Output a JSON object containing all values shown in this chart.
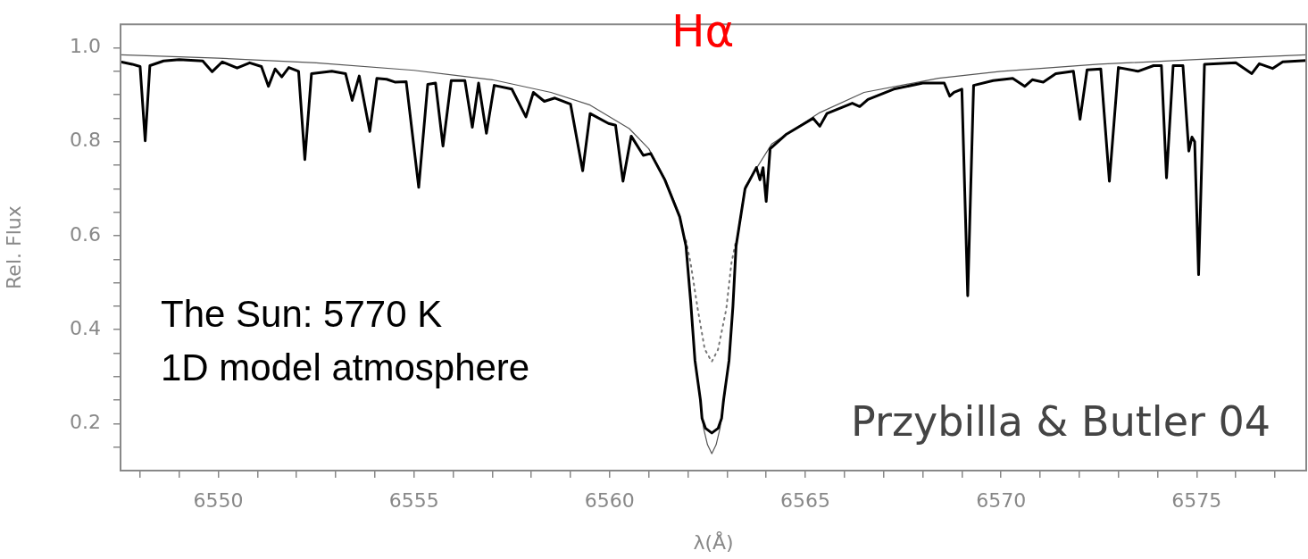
{
  "chart_data": {
    "type": "line",
    "xlabel": "λ(Å)",
    "ylabel": "Rel. Flux",
    "xlim": [
      6547.5,
      6577.8
    ],
    "ylim": [
      0.1,
      1.05
    ],
    "xticks": [
      {
        "value": 6548,
        "label": null
      },
      {
        "value": 6549,
        "label": null
      },
      6550,
      {
        "value": 6551,
        "label": null
      },
      {
        "value": 6552,
        "label": null
      },
      {
        "value": 6553,
        "label": null
      },
      {
        "value": 6554,
        "label": null
      },
      6555,
      {
        "value": 6556,
        "label": null
      },
      {
        "value": 6557,
        "label": null
      },
      {
        "value": 6558,
        "label": null
      },
      {
        "value": 6559,
        "label": null
      },
      6560,
      {
        "value": 6561,
        "label": null
      },
      {
        "value": 6562,
        "label": null
      },
      {
        "value": 6563,
        "label": null
      },
      {
        "value": 6564,
        "label": null
      },
      6565,
      {
        "value": 6566,
        "label": null
      },
      {
        "value": 6567,
        "label": null
      },
      {
        "value": 6568,
        "label": null
      },
      {
        "value": 6569,
        "label": null
      },
      6570,
      {
        "value": 6571,
        "label": null
      },
      {
        "value": 6572,
        "label": null
      },
      {
        "value": 6573,
        "label": null
      },
      {
        "value": 6574,
        "label": null
      },
      6575,
      {
        "value": 6576,
        "label": null
      },
      {
        "value": 6577,
        "label": null
      }
    ],
    "yticks": [
      {
        "value": 0.15,
        "label": null
      },
      0.2,
      {
        "value": 0.25,
        "label": null
      },
      {
        "value": 0.3,
        "label": null
      },
      {
        "value": 0.35,
        "label": null
      },
      0.4,
      {
        "value": 0.45,
        "label": null
      },
      {
        "value": 0.5,
        "label": null
      },
      {
        "value": 0.55,
        "label": null
      },
      0.6,
      {
        "value": 0.65,
        "label": null
      },
      {
        "value": 0.7,
        "label": null
      },
      {
        "value": 0.75,
        "label": null
      },
      0.8,
      {
        "value": 0.85,
        "label": null
      },
      {
        "value": 0.9,
        "label": null
      },
      {
        "value": 0.95,
        "label": null
      },
      {
        "value": 1.0,
        "label": "1.0"
      }
    ],
    "grid": false,
    "legend": false,
    "marker": "none",
    "series": [
      {
        "color": "#000000",
        "line_style": "solid",
        "x": [
          6547.5,
          6547.8,
          6548.0,
          6548.13,
          6548.25,
          6548.6,
          6549.0,
          6549.6,
          6549.84,
          6550.1,
          6550.48,
          6550.8,
          6551.1,
          6551.28,
          6551.45,
          6551.62,
          6551.8,
          6552.05,
          6552.21,
          6552.38,
          6552.9,
          6553.25,
          6553.42,
          6553.6,
          6553.87,
          6554.05,
          6554.3,
          6554.51,
          6554.8,
          6555.12,
          6555.35,
          6555.55,
          6555.74,
          6555.95,
          6556.3,
          6556.49,
          6556.65,
          6556.85,
          6557.05,
          6557.5,
          6557.86,
          6558.05,
          6558.33,
          6558.6,
          6559.0,
          6559.31,
          6559.5,
          6559.97,
          6560.15,
          6560.34,
          6560.55,
          6560.86,
          6561.05,
          6561.41,
          6561.79,
          6561.95,
          6562.07,
          6562.18,
          6562.32,
          6562.36,
          6562.45,
          6562.61,
          6562.77,
          6562.86,
          6562.91,
          6563.05,
          6563.15,
          6563.23,
          6563.46,
          6563.75,
          6563.84,
          6563.92,
          6564.0,
          6564.1,
          6564.5,
          6565.2,
          6565.37,
          6565.55,
          6566.2,
          6566.39,
          6566.6,
          6567.26,
          6568.0,
          6568.55,
          6568.69,
          6568.8,
          6569.0,
          6569.15,
          6569.3,
          6569.8,
          6570.3,
          6570.61,
          6570.8,
          6571.08,
          6571.4,
          6571.85,
          6572.02,
          6572.2,
          6572.55,
          6572.77,
          6573.0,
          6573.5,
          6573.9,
          6574.1,
          6574.23,
          6574.4,
          6574.65,
          6574.8,
          6574.88,
          6574.95,
          6575.05,
          6575.2,
          6576.0,
          6576.41,
          6576.6,
          6576.94,
          6577.2,
          6577.8
        ],
        "values": [
          0.97,
          0.965,
          0.96,
          0.802,
          0.962,
          0.972,
          0.975,
          0.972,
          0.949,
          0.97,
          0.957,
          0.968,
          0.96,
          0.918,
          0.955,
          0.938,
          0.958,
          0.95,
          0.762,
          0.945,
          0.95,
          0.945,
          0.888,
          0.94,
          0.822,
          0.935,
          0.933,
          0.927,
          0.928,
          0.703,
          0.922,
          0.925,
          0.791,
          0.93,
          0.93,
          0.831,
          0.925,
          0.818,
          0.92,
          0.912,
          0.853,
          0.905,
          0.886,
          0.893,
          0.88,
          0.738,
          0.86,
          0.839,
          0.835,
          0.716,
          0.812,
          0.771,
          0.775,
          0.719,
          0.64,
          0.578,
          0.46,
          0.334,
          0.25,
          0.211,
          0.19,
          0.18,
          0.19,
          0.211,
          0.25,
          0.334,
          0.45,
          0.578,
          0.7,
          0.745,
          0.719,
          0.745,
          0.673,
          0.785,
          0.815,
          0.85,
          0.833,
          0.86,
          0.882,
          0.875,
          0.89,
          0.912,
          0.925,
          0.925,
          0.897,
          0.905,
          0.912,
          0.472,
          0.92,
          0.93,
          0.935,
          0.918,
          0.932,
          0.927,
          0.945,
          0.95,
          0.848,
          0.953,
          0.955,
          0.716,
          0.958,
          0.95,
          0.962,
          0.962,
          0.723,
          0.962,
          0.962,
          0.78,
          0.81,
          0.8,
          0.517,
          0.965,
          0.968,
          0.945,
          0.966,
          0.956,
          0.97,
          0.973
        ]
      },
      {
        "color": "#555555",
        "line_style": "solid",
        "x": [
          6547.5,
          6550,
          6552.5,
          6555,
          6557,
          6558.5,
          6559.5,
          6560.5,
          6561.0,
          6561.41,
          6561.79,
          6561.95,
          6562.07,
          6562.18,
          6562.32,
          6562.4,
          6562.5,
          6562.61,
          6562.72,
          6562.82,
          6562.91,
          6563.05,
          6563.15,
          6563.23,
          6563.46,
          6564.14,
          6565.37,
          6566.5,
          6568.4,
          6570,
          6572.5,
          6575,
          6577.8
        ],
        "values": [
          0.985,
          0.978,
          0.968,
          0.952,
          0.932,
          0.905,
          0.878,
          0.828,
          0.785,
          0.722,
          0.643,
          0.58,
          0.46,
          0.334,
          0.245,
          0.19,
          0.155,
          0.136,
          0.155,
          0.19,
          0.245,
          0.334,
          0.45,
          0.58,
          0.705,
          0.795,
          0.862,
          0.905,
          0.935,
          0.95,
          0.965,
          0.975,
          0.985
        ]
      },
      {
        "color": "#777777",
        "line_style": "dotted",
        "x": [
          6561.95,
          6562.07,
          6562.25,
          6562.43,
          6562.61,
          6562.77,
          6562.98,
          6563.11,
          6563.23
        ],
        "values": [
          0.59,
          0.541,
          0.444,
          0.358,
          0.332,
          0.358,
          0.444,
          0.541,
          0.59
        ]
      }
    ],
    "annotations": [
      "Hα",
      "The Sun: 5770 K",
      "1D model atmosphere",
      "Przybilla & Butler 04"
    ]
  }
}
